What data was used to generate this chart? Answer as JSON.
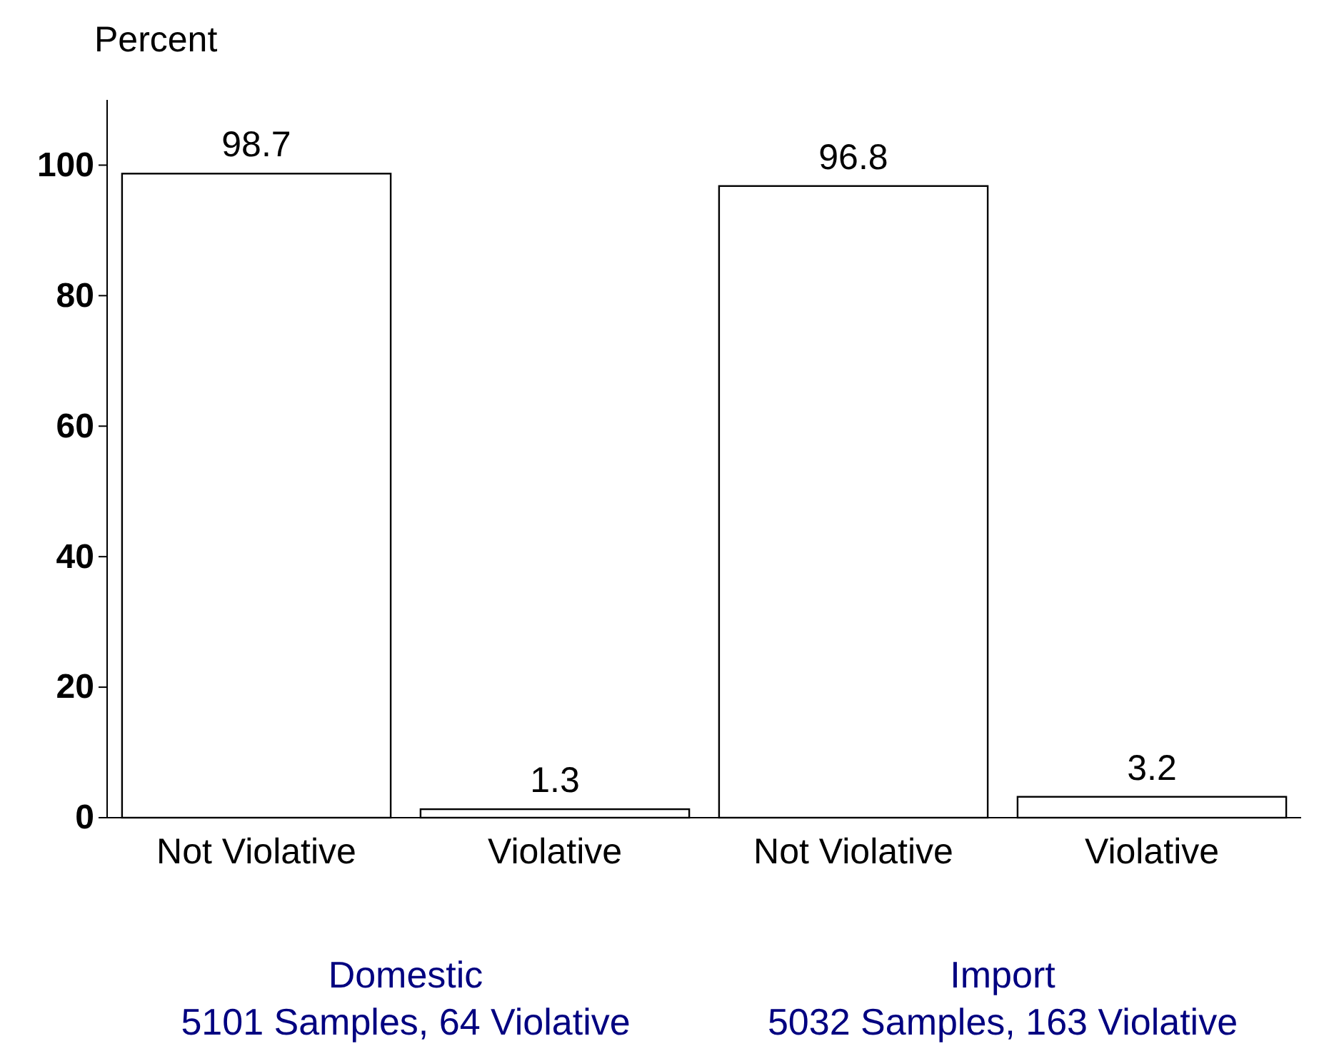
{
  "chart_data": {
    "type": "bar",
    "ylabel": "Percent",
    "categories": [
      "Not Violative",
      "Violative",
      "Not Violative",
      "Violative"
    ],
    "values": [
      98.7,
      1.3,
      96.8,
      3.2
    ],
    "color": "#ffffff",
    "data_labels": true,
    "ylim": [
      0,
      110
    ],
    "yticks": [
      0,
      20,
      40,
      60,
      80,
      100
    ],
    "annotations": [
      "Domestic",
      "5101 Samples, 64 Violative",
      "Import",
      "5032 Samples, 163 Violative"
    ]
  }
}
